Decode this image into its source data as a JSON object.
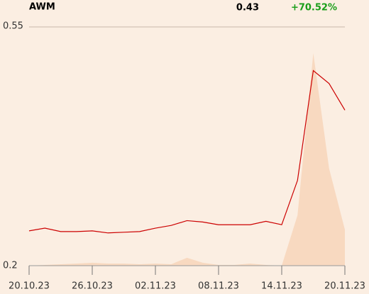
{
  "chart_data": {
    "type": "line",
    "title": "AWM",
    "last_price": "0.43",
    "change": "+70.52%",
    "categories": [
      "20.10.23",
      null,
      null,
      null,
      "26.10.23",
      null,
      null,
      null,
      "02.11.23",
      null,
      null,
      null,
      "08.11.23",
      null,
      null,
      null,
      "14.11.23",
      null,
      null,
      null,
      "20.11.23"
    ],
    "series": [
      {
        "name": "AWM",
        "color": "#cc0000",
        "values": [
          0.251,
          0.255,
          0.25,
          0.25,
          0.251,
          0.248,
          0.249,
          0.25,
          0.255,
          0.259,
          0.266,
          0.264,
          0.26,
          0.26,
          0.26,
          0.265,
          0.26,
          0.325,
          0.486,
          0.467,
          0.428
        ]
      },
      {
        "name": "Volume",
        "color": "#f8d9c0",
        "values": [
          0,
          1,
          2,
          3,
          4,
          3,
          3,
          2,
          3,
          2,
          11,
          4,
          1,
          1,
          3,
          1,
          0,
          70,
          295,
          135,
          50
        ]
      }
    ],
    "ylim": [
      0.2,
      0.55
    ],
    "yticks": [
      0.2,
      0.55
    ],
    "grid": true
  }
}
